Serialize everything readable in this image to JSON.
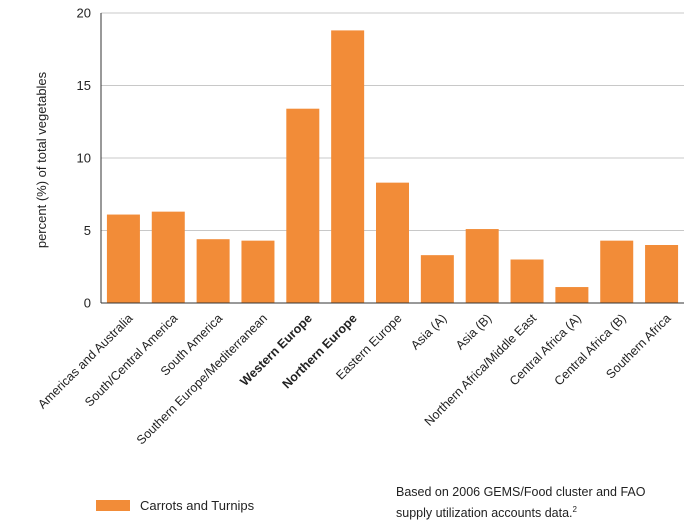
{
  "chart_data": {
    "type": "bar",
    "categories": [
      "Americas and Australia",
      "South/Central America",
      "South America",
      "Southern Europe/Mediterranean",
      "Western Europe",
      "Northern Europe",
      "Eastern Europe",
      "Asia (A)",
      "Asia (B)",
      "Northern Africa/Middle East",
      "Central Africa (A)",
      "Central Africa (B)",
      "Southern Africa"
    ],
    "bold_categories": [
      "Western Europe",
      "Northern Europe"
    ],
    "series": [
      {
        "name": "Carrots and Turnips",
        "values": [
          6.1,
          6.3,
          4.4,
          4.3,
          13.4,
          18.8,
          8.3,
          3.3,
          5.1,
          3.0,
          1.1,
          4.3,
          4.0
        ],
        "color": "#f28c38"
      }
    ],
    "ylabel": "percent (%) of total vegetables",
    "xlabel": "",
    "ylim": [
      0,
      20
    ],
    "yticks": [
      0,
      5,
      10,
      15,
      20
    ],
    "grid": true,
    "legend_position": "bottom-left"
  },
  "footnote": {
    "line1": "Based on 2006 GEMS/Food cluster and FAO",
    "line2": "supply utilization accounts data.",
    "ref": "2"
  },
  "colors": {
    "bar": "#f28c38",
    "grid": "#c8c8c8",
    "axis": "#333333"
  }
}
